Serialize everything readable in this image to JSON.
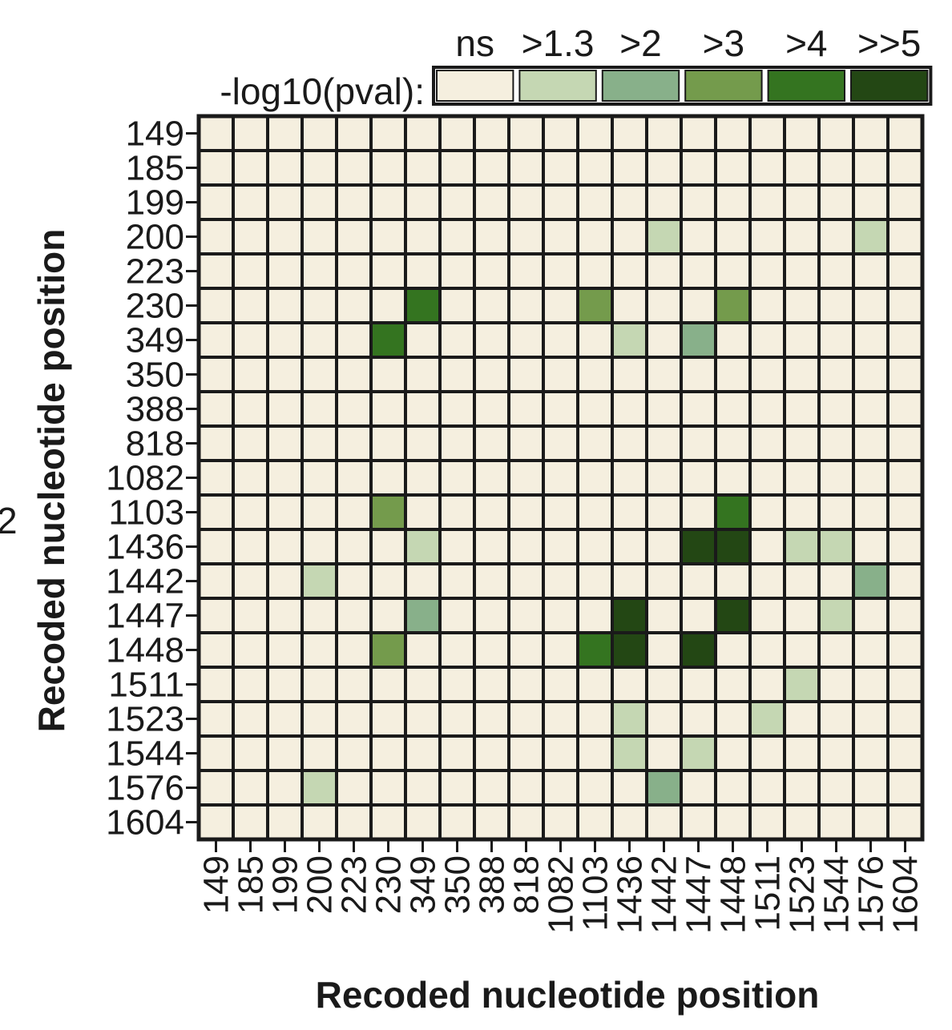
{
  "chart_data": {
    "type": "heatmap",
    "xlabel": "Recoded nucleotide position",
    "ylabel": "Recoded nucleotide position",
    "categories": [
      "149",
      "185",
      "199",
      "200",
      "223",
      "230",
      "349",
      "350",
      "388",
      "818",
      "1082",
      "1103",
      "1436",
      "1442",
      "1447",
      "1448",
      "1511",
      "1523",
      "1544",
      "1576",
      "1604"
    ],
    "legend": {
      "title": "-log10(pval):",
      "bins": [
        {
          "label": "ns",
          "color": "#f5efdf"
        },
        {
          "label": ">1.3",
          "color": "#c5d7b3"
        },
        {
          "label": ">2",
          "color": "#88b08a"
        },
        {
          "label": ">3",
          "color": "#749b4c"
        },
        {
          "label": ">4",
          "color": "#347420"
        },
        {
          "label": ">>5",
          "color": "#234714"
        }
      ]
    },
    "cells": [
      {
        "row": "200",
        "col": "1442",
        "bin": 1
      },
      {
        "row": "200",
        "col": "1576",
        "bin": 1
      },
      {
        "row": "230",
        "col": "349",
        "bin": 4
      },
      {
        "row": "230",
        "col": "1103",
        "bin": 3
      },
      {
        "row": "230",
        "col": "1448",
        "bin": 3
      },
      {
        "row": "349",
        "col": "230",
        "bin": 4
      },
      {
        "row": "349",
        "col": "1436",
        "bin": 1
      },
      {
        "row": "349",
        "col": "1447",
        "bin": 2
      },
      {
        "row": "1103",
        "col": "230",
        "bin": 3
      },
      {
        "row": "1103",
        "col": "1448",
        "bin": 4
      },
      {
        "row": "1436",
        "col": "349",
        "bin": 1
      },
      {
        "row": "1436",
        "col": "1447",
        "bin": 5
      },
      {
        "row": "1436",
        "col": "1448",
        "bin": 5
      },
      {
        "row": "1436",
        "col": "1523",
        "bin": 1
      },
      {
        "row": "1436",
        "col": "1544",
        "bin": 1
      },
      {
        "row": "1442",
        "col": "200",
        "bin": 1
      },
      {
        "row": "1442",
        "col": "1576",
        "bin": 2
      },
      {
        "row": "1447",
        "col": "349",
        "bin": 2
      },
      {
        "row": "1447",
        "col": "1436",
        "bin": 5
      },
      {
        "row": "1447",
        "col": "1448",
        "bin": 5
      },
      {
        "row": "1447",
        "col": "1544",
        "bin": 1
      },
      {
        "row": "1448",
        "col": "230",
        "bin": 3
      },
      {
        "row": "1448",
        "col": "1103",
        "bin": 4
      },
      {
        "row": "1448",
        "col": "1436",
        "bin": 5
      },
      {
        "row": "1448",
        "col": "1447",
        "bin": 5
      },
      {
        "row": "1511",
        "col": "1523",
        "bin": 1
      },
      {
        "row": "1523",
        "col": "1436",
        "bin": 1
      },
      {
        "row": "1523",
        "col": "1511",
        "bin": 1
      },
      {
        "row": "1544",
        "col": "1436",
        "bin": 1
      },
      {
        "row": "1544",
        "col": "1447",
        "bin": 1
      },
      {
        "row": "1576",
        "col": "200",
        "bin": 1
      },
      {
        "row": "1576",
        "col": "1442",
        "bin": 2
      }
    ],
    "edge_fragment": "2"
  },
  "colors": {
    "grid_line": "#1a1a1a",
    "text": "#1a1a1a"
  }
}
